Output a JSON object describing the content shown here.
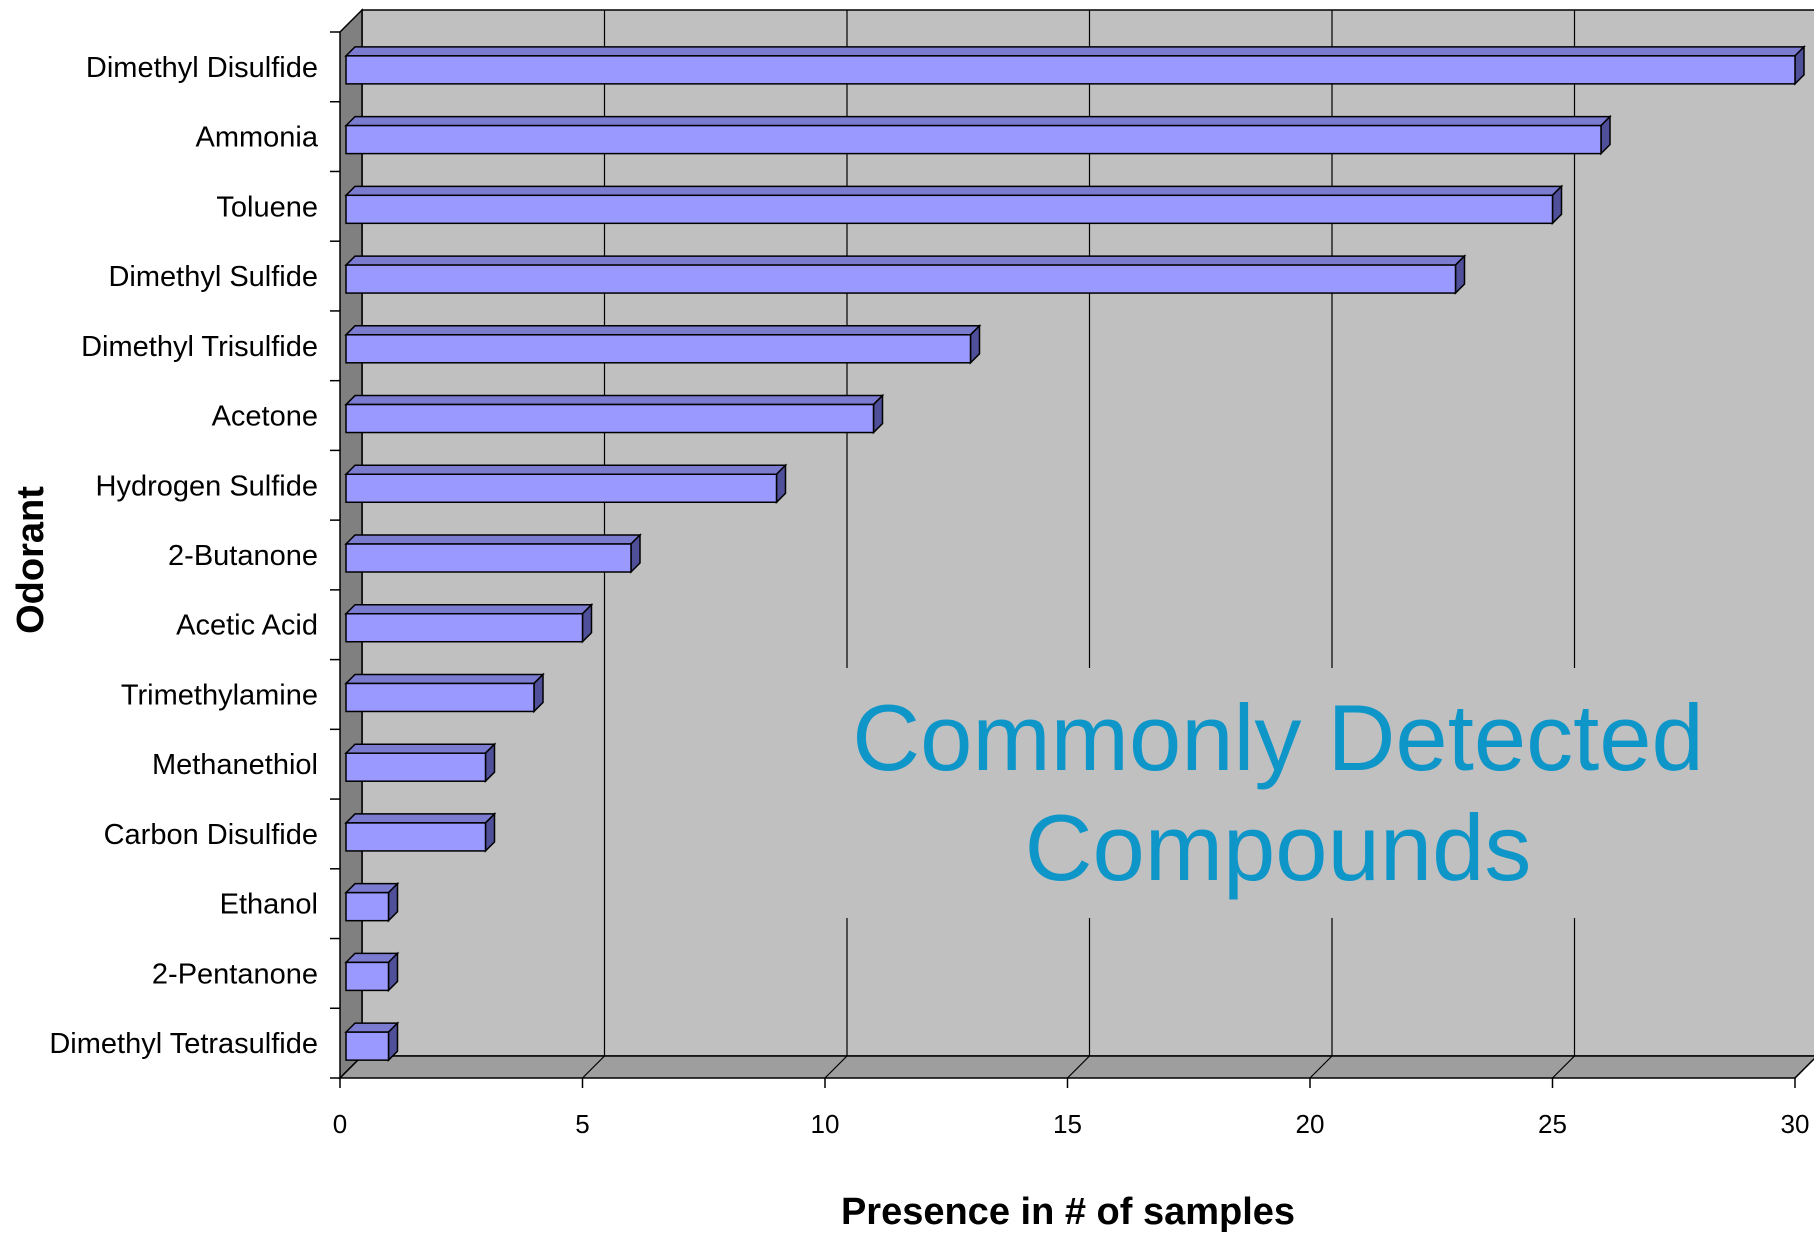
{
  "chart_data": {
    "type": "bar",
    "orientation": "horizontal",
    "three_d": true,
    "categories": [
      "Dimethyl Disulfide",
      "Ammonia",
      "Toluene",
      "Dimethyl Sulfide",
      "Dimethyl Trisulfide",
      "Acetone",
      "Hydrogen Sulfide",
      "2-Butanone",
      "Acetic Acid",
      "Trimethylamine",
      "Methanethiol",
      "Carbon Disulfide",
      "Ethanol",
      "2-Pentanone",
      "Dimethyl Tetrasulfide"
    ],
    "values": [
      30,
      26,
      25,
      23,
      13,
      11,
      9,
      6,
      5,
      4,
      3,
      3,
      1,
      1,
      1
    ],
    "xlabel": "Presence in # of samples",
    "ylabel": "Odorant",
    "xlim": [
      0,
      30
    ],
    "xticks": [
      0,
      5,
      10,
      15,
      20,
      25,
      30
    ],
    "grid": "vertical",
    "legend": "none",
    "annotation": "Commonly Detected Compounds",
    "colors": {
      "bar_face": "#9999ff",
      "bar_top": "#7b7bd0",
      "bar_side": "#4f4f9a",
      "plot_background": "#c0c0c0",
      "side_wall": "#808080",
      "floor": "#9e9e9e",
      "annotation": "#0e96c9"
    }
  }
}
